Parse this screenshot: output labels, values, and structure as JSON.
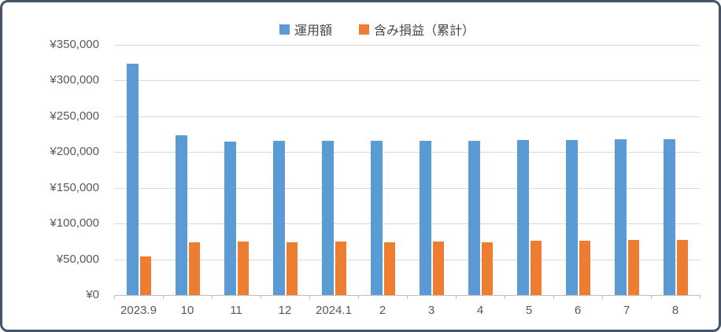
{
  "chart_data": {
    "type": "bar",
    "title": "",
    "categories": [
      "2023.9",
      "10",
      "11",
      "12",
      "2024.1",
      "2",
      "3",
      "4",
      "5",
      "6",
      "7",
      "8"
    ],
    "series": [
      {
        "name": "運用額",
        "key": "operation-amount",
        "color": "#5B9BD5",
        "values": [
          324000,
          223000,
          215000,
          215500,
          215500,
          215500,
          215500,
          215500,
          216500,
          216500,
          217500,
          217500
        ]
      },
      {
        "name": "含み損益（累計）",
        "key": "unrealized-profit-loss-cumulative",
        "color": "#ED7D31",
        "values": [
          53500,
          74000,
          75000,
          74000,
          75000,
          74000,
          75000,
          74000,
          76000,
          76000,
          77000,
          76500
        ]
      }
    ],
    "y_axis": {
      "min": 0,
      "max": 350000,
      "step": 50000,
      "tick_labels": [
        "¥350,000",
        "¥300,000",
        "¥250,000",
        "¥200,000",
        "¥150,000",
        "¥100,000",
        "¥50,000",
        "¥0"
      ]
    },
    "legend_position": "top",
    "grid": true
  },
  "colors": {
    "background": "#FFFFFF",
    "border": "#44546A",
    "gridline": "#D9D9D9",
    "axis_line": "#BFBFBF",
    "label_text": "#595959",
    "series_blue": "#5B9BD5",
    "series_orange": "#ED7D31"
  }
}
